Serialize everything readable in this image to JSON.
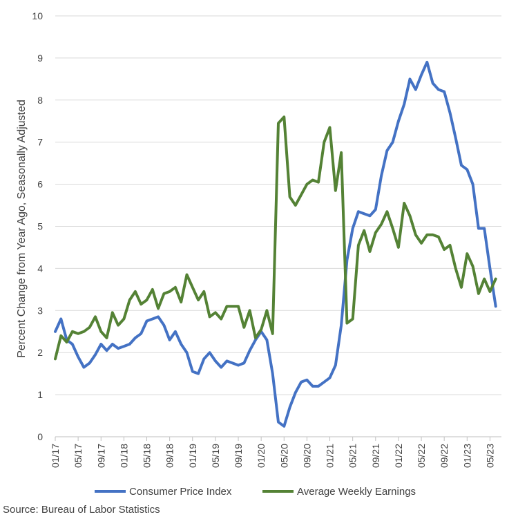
{
  "chart_data": {
    "type": "line",
    "ylabel": "Percent Change from Year Ago, Seasonally Adjusted",
    "ylim": [
      0,
      10
    ],
    "yticks": [
      0,
      1,
      2,
      3,
      4,
      5,
      6,
      7,
      8,
      9,
      10
    ],
    "x_start": "01/17",
    "x_end": "07/23",
    "xtick_labels": [
      "01/17",
      "05/17",
      "09/17",
      "01/18",
      "05/18",
      "09/18",
      "01/19",
      "05/19",
      "09/19",
      "01/20",
      "05/20",
      "09/20",
      "01/21",
      "05/21",
      "09/21",
      "01/22",
      "05/22",
      "09/22",
      "01/23",
      "05/23"
    ],
    "grid": "horizontal",
    "legend_position": "bottom",
    "source": "Source: Bureau of Labor Statistics",
    "series": [
      {
        "name": "Consumer Price Index",
        "color": "#4472C4",
        "values": [
          2.5,
          2.8,
          2.3,
          2.2,
          1.9,
          1.65,
          1.75,
          1.95,
          2.2,
          2.05,
          2.2,
          2.1,
          2.15,
          2.2,
          2.35,
          2.45,
          2.75,
          2.8,
          2.85,
          2.65,
          2.3,
          2.5,
          2.2,
          2.0,
          1.55,
          1.5,
          1.85,
          2.0,
          1.8,
          1.65,
          1.8,
          1.75,
          1.7,
          1.75,
          2.05,
          2.3,
          2.5,
          2.3,
          1.5,
          0.35,
          0.25,
          0.7,
          1.05,
          1.3,
          1.35,
          1.2,
          1.2,
          1.3,
          1.4,
          1.7,
          2.65,
          4.2,
          4.95,
          5.35,
          5.3,
          5.25,
          5.4,
          6.2,
          6.8,
          7.0,
          7.5,
          7.9,
          8.5,
          8.25,
          8.6,
          8.9,
          8.4,
          8.25,
          8.2,
          7.7,
          7.1,
          6.45,
          6.35,
          6.0,
          4.95,
          4.95,
          4.0,
          3.1
        ]
      },
      {
        "name": "Average Weekly Earnings",
        "color": "#548235",
        "values": [
          1.85,
          2.4,
          2.25,
          2.5,
          2.45,
          2.5,
          2.6,
          2.85,
          2.5,
          2.35,
          2.95,
          2.65,
          2.8,
          3.25,
          3.45,
          3.15,
          3.25,
          3.5,
          3.05,
          3.4,
          3.45,
          3.55,
          3.2,
          3.85,
          3.55,
          3.25,
          3.45,
          2.85,
          2.95,
          2.8,
          3.1,
          3.1,
          3.1,
          2.6,
          3.0,
          2.35,
          2.55,
          3.0,
          2.45,
          7.45,
          7.6,
          5.7,
          5.5,
          5.75,
          6.0,
          6.1,
          6.05,
          7.0,
          7.35,
          5.85,
          6.75,
          2.7,
          2.8,
          4.55,
          4.9,
          4.4,
          4.85,
          5.05,
          5.35,
          4.95,
          4.5,
          5.55,
          5.25,
          4.8,
          4.6,
          4.8,
          4.8,
          4.75,
          4.45,
          4.55,
          4.0,
          3.55,
          4.35,
          4.05,
          3.4,
          3.75,
          3.45,
          3.75
        ]
      }
    ]
  }
}
